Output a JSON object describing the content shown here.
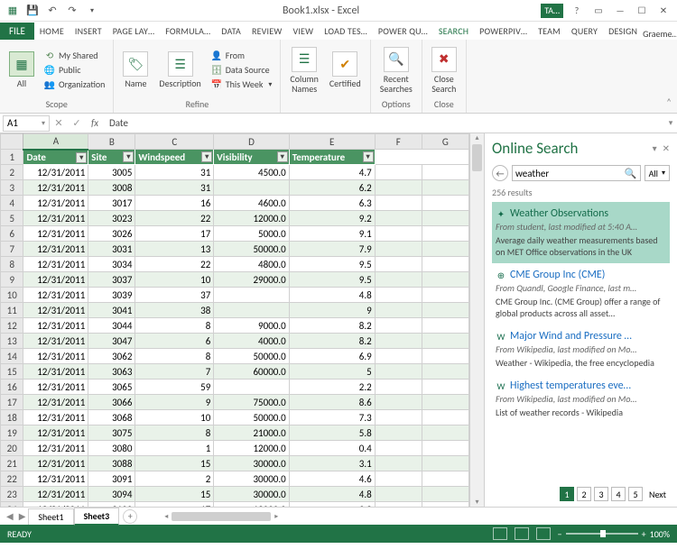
{
  "titlebar": {
    "title": "Book1.xlsx - Excel",
    "ta": "TA…",
    "account": "Graeme…"
  },
  "tabs": [
    "HOME",
    "INSERT",
    "PAGE LAY…",
    "FORMULA…",
    "DATA",
    "REVIEW",
    "VIEW",
    "LOAD TES…",
    "POWER QU…",
    "SEARCH",
    "POWERPIV…",
    "TEAM",
    "QUERY",
    "DESIGN"
  ],
  "tabs_active_index": 9,
  "file_label": "FILE",
  "ribbon": {
    "scope": {
      "all": "All",
      "shared": "My Shared",
      "public": "Public",
      "org": "Organization",
      "group": "Scope"
    },
    "refine": {
      "name": "Name",
      "desc": "Description",
      "from": "From",
      "source": "Data Source",
      "thisweek": "This Week",
      "group": "Refine"
    },
    "manage": {
      "columns": "Column\nNames",
      "certified": "Certified",
      "group": "Manage"
    },
    "options": {
      "recent": "Recent\nSearches",
      "group": "Options"
    },
    "close": {
      "close": "Close\nSearch",
      "group": "Close"
    }
  },
  "namebox": "A1",
  "formula": "Date",
  "columns": [
    "A",
    "B",
    "C",
    "D",
    "E",
    "F",
    "G"
  ],
  "headers": [
    "Date",
    "Site",
    "Windspeed",
    "Visibility",
    "Temperature"
  ],
  "rows": [
    [
      "12/31/2011",
      "3005",
      "31",
      "4500.0",
      "4.7"
    ],
    [
      "12/31/2011",
      "3008",
      "31",
      "",
      "6.2"
    ],
    [
      "12/31/2011",
      "3017",
      "16",
      "4600.0",
      "6.3"
    ],
    [
      "12/31/2011",
      "3023",
      "22",
      "12000.0",
      "9.2"
    ],
    [
      "12/31/2011",
      "3026",
      "17",
      "5000.0",
      "9.1"
    ],
    [
      "12/31/2011",
      "3031",
      "13",
      "50000.0",
      "7.9"
    ],
    [
      "12/31/2011",
      "3034",
      "22",
      "4800.0",
      "9.5"
    ],
    [
      "12/31/2011",
      "3037",
      "10",
      "29000.0",
      "9.5"
    ],
    [
      "12/31/2011",
      "3039",
      "37",
      "",
      "4.8"
    ],
    [
      "12/31/2011",
      "3041",
      "38",
      "",
      "9"
    ],
    [
      "12/31/2011",
      "3044",
      "8",
      "9000.0",
      "8.2"
    ],
    [
      "12/31/2011",
      "3047",
      "6",
      "4000.0",
      "8.2"
    ],
    [
      "12/31/2011",
      "3062",
      "8",
      "50000.0",
      "6.9"
    ],
    [
      "12/31/2011",
      "3063",
      "7",
      "60000.0",
      "5"
    ],
    [
      "12/31/2011",
      "3065",
      "59",
      "",
      "2.2"
    ],
    [
      "12/31/2011",
      "3066",
      "9",
      "75000.0",
      "8.6"
    ],
    [
      "12/31/2011",
      "3068",
      "10",
      "50000.0",
      "7.3"
    ],
    [
      "12/31/2011",
      "3075",
      "8",
      "21000.0",
      "5.8"
    ],
    [
      "12/31/2011",
      "3080",
      "1",
      "12000.0",
      "0.4"
    ],
    [
      "12/31/2011",
      "3088",
      "15",
      "30000.0",
      "3.1"
    ],
    [
      "12/31/2011",
      "3091",
      "2",
      "30000.0",
      "4.6"
    ],
    [
      "12/31/2011",
      "3094",
      "15",
      "30000.0",
      "4.8"
    ],
    [
      "12/31/2011",
      "3100",
      "17",
      "13000.0",
      "9.2"
    ]
  ],
  "sheets": {
    "nav_l": "◀",
    "nav_r": "▶",
    "s1": "Sheet1",
    "s3": "Sheet3",
    "add": "+"
  },
  "pane": {
    "title": "Online Search",
    "query": "weather",
    "filter": "All",
    "count": "256 results",
    "results": [
      {
        "icon": "✦",
        "title": "Weather Observations",
        "source": "From student, last modified at 5:40 A…",
        "desc": "Average daily weather measurements based on MET Office observations in the UK",
        "sel": true
      },
      {
        "icon": "⊕",
        "title": "CME Group Inc (CME)",
        "source": "From Quandl, Google Finance, last m…",
        "desc": "CME Group Inc. (CME Group) offer a range of global products across all asset…",
        "sel": false
      },
      {
        "icon": "W",
        "title": "Major Wind and Pressure …",
        "source": "From Wikipedia, last modified on Mo…",
        "desc": "Weather - Wikipedia, the free encyclopedia",
        "sel": false
      },
      {
        "icon": "W",
        "title": "Highest temperatures eve…",
        "source": "From Wikipedia, last modified on Mo…",
        "desc": "List of weather records - Wikipedia",
        "sel": false
      }
    ],
    "pages": [
      "1",
      "2",
      "3",
      "4",
      "5"
    ],
    "next": "Next"
  },
  "status": {
    "ready": "READY",
    "zoom": "100%"
  }
}
